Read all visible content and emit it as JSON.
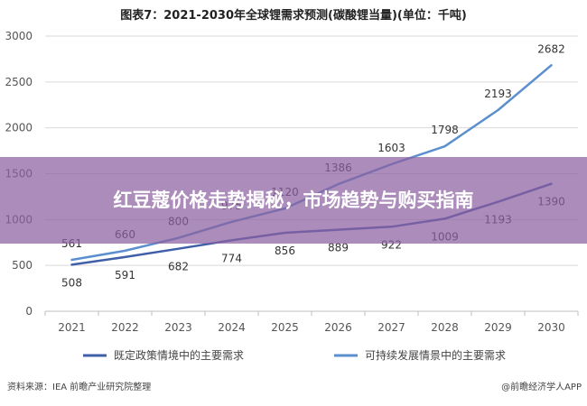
{
  "chart_data": {
    "type": "line",
    "title": "图表7：2021-2030年全球锂需求预测(碳酸锂当量)(单位：千吨)",
    "x": [
      "2021",
      "2022",
      "2023",
      "2024",
      "2025",
      "2026",
      "2027",
      "2028",
      "2029",
      "2030"
    ],
    "series": [
      {
        "name": "既定政策情境中的主要需求",
        "values": [
          508,
          591,
          682,
          774,
          856,
          889,
          922,
          1009,
          1193,
          1390
        ],
        "color": "#3f5fa8"
      },
      {
        "name": "可持续发展情景中的主要需求",
        "values": [
          561,
          660,
          800,
          975,
          1120,
          1386,
          1603,
          1798,
          2193,
          2682
        ],
        "color": "#5b8fce"
      }
    ],
    "yticks": [
      "0",
      "500",
      "1000",
      "1500",
      "2000",
      "2500",
      "3000"
    ],
    "ylim": [
      0,
      3000
    ],
    "grid": true,
    "legend": "bottom"
  },
  "footer": {
    "source": "资料来源：IEA 前瞻产业研究院整理",
    "brand": "@前瞻经济学人APP"
  },
  "overlay": {
    "headline": "红豆蔻价格走势揭秘，市场趋势与购买指南"
  },
  "colors": {
    "overlay": "#8c5fa0",
    "grid": "#d9d9d9"
  }
}
